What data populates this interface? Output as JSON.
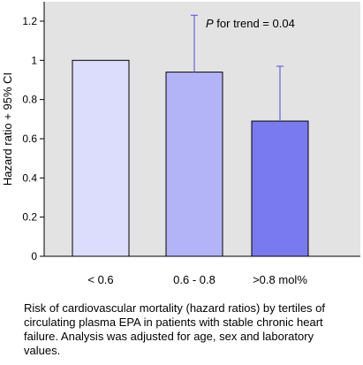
{
  "chart_data": {
    "type": "bar",
    "categories": [
      "< 0.6",
      "0.6 - 0.8",
      ">0.8 mol%"
    ],
    "values": [
      1.0,
      0.94,
      0.69
    ],
    "ci_upper": [
      null,
      1.23,
      0.97
    ],
    "ylabel": "Hazard ratio + 95% CI",
    "ylim": [
      0,
      1.3
    ],
    "yticks": [
      0,
      0.2,
      0.4,
      0.6,
      0.8,
      1,
      1.2
    ],
    "grid": false,
    "annotation": {
      "p_symbol": "P",
      "text": " for trend = 0.04"
    },
    "colors": {
      "plot_background": "#e3e3e3",
      "bars": [
        "#dcdcfd",
        "#b3b3f7",
        "#7a7af0"
      ],
      "bar_stroke": "#000000",
      "error_bar": "#6565d8"
    }
  },
  "caption": "Risk of cardiovascular mortality (hazard ratios) by tertiles of circulating plasma EPA in patients with stable chronic heart failure. Analysis was adjusted for age, sex and laboratory values."
}
